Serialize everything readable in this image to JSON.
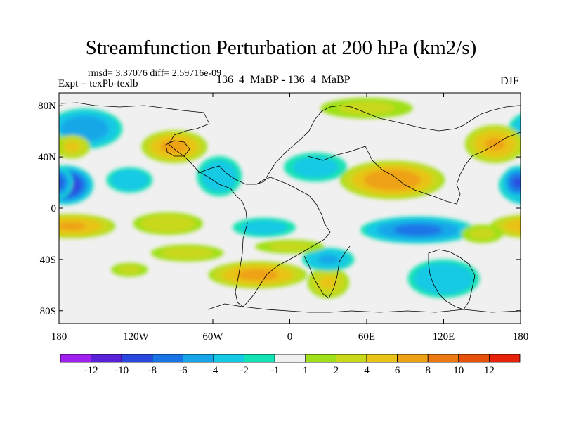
{
  "chart_data": {
    "type": "heatmap",
    "title": "Streamfunction Perturbation at 200 hPa (km2/s)",
    "stats_text": "rmsd= 3.37076 diff= 2.59716e-09",
    "left_label": "Expt = texPb-texlb",
    "center_label": "136_4_MaBP - 136_4_MaBP",
    "right_label": "DJF",
    "x_ticks": [
      "180",
      "120W",
      "60W",
      "0",
      "60E",
      "120E",
      "180"
    ],
    "x_range": [
      -180,
      180
    ],
    "y_ticks": [
      "80N",
      "40N",
      "0",
      "40S",
      "80S"
    ],
    "y_range": [
      -90,
      90
    ],
    "colorbar": {
      "labels": [
        "-12",
        "-10",
        "-8",
        "-6",
        "-4",
        "-2",
        "-1",
        "1",
        "2",
        "4",
        "6",
        "8",
        "10",
        "12"
      ],
      "colors": [
        "#a020f0",
        "#5a22d8",
        "#2a48e0",
        "#1a74e6",
        "#17a7e8",
        "#14c9e4",
        "#12e2b4",
        "#f0f0f0",
        "#9fe019",
        "#c9d81a",
        "#e8c419",
        "#eea216",
        "#ec7a12",
        "#e6520c",
        "#e6220a"
      ]
    },
    "blobs": [
      {
        "lon": -160,
        "lat": 62,
        "value": -5.5,
        "rlon": 28,
        "rlat": 15
      },
      {
        "lon": -175,
        "lat": 18,
        "value": -10.5,
        "rlon": 20,
        "rlat": 14
      },
      {
        "lon": 178,
        "lat": 20,
        "value": -8,
        "rlon": 12,
        "rlat": 12
      },
      {
        "lon": -90,
        "lat": 48,
        "value": 6.5,
        "rlon": 24,
        "rlat": 12
      },
      {
        "lon": -170,
        "lat": 48,
        "value": 4,
        "rlon": 14,
        "rlat": 9
      },
      {
        "lon": -170,
        "lat": -14,
        "value": 6,
        "rlon": 32,
        "rlat": 9
      },
      {
        "lon": -95,
        "lat": -12,
        "value": 3,
        "rlon": 28,
        "rlat": 9
      },
      {
        "lon": -125,
        "lat": 22,
        "value": -3.5,
        "rlon": 18,
        "rlat": 10
      },
      {
        "lon": -55,
        "lat": 25,
        "value": -3,
        "rlon": 18,
        "rlat": 16
      },
      {
        "lon": 20,
        "lat": 32,
        "value": -2.5,
        "rlon": 26,
        "rlat": 12
      },
      {
        "lon": 80,
        "lat": 22,
        "value": 7.5,
        "rlon": 38,
        "rlat": 14
      },
      {
        "lon": 60,
        "lat": 78,
        "value": 2,
        "rlon": 40,
        "rlat": 9
      },
      {
        "lon": 160,
        "lat": 50,
        "value": 6,
        "rlon": 22,
        "rlat": 14
      },
      {
        "lon": 100,
        "lat": -17,
        "value": -6.5,
        "rlon": 42,
        "rlat": 10
      },
      {
        "lon": -20,
        "lat": -15,
        "value": -2.5,
        "rlon": 26,
        "rlat": 8
      },
      {
        "lon": -25,
        "lat": -52,
        "value": 6.5,
        "rlon": 36,
        "rlat": 10
      },
      {
        "lon": 30,
        "lat": -58,
        "value": 4,
        "rlon": 16,
        "rlat": 12
      },
      {
        "lon": 30,
        "lat": -40,
        "value": -4,
        "rlon": 20,
        "rlat": 9
      },
      {
        "lon": 120,
        "lat": -55,
        "value": -3.5,
        "rlon": 28,
        "rlat": 15
      },
      {
        "lon": -125,
        "lat": -48,
        "value": 2,
        "rlon": 16,
        "rlat": 6
      },
      {
        "lon": 0,
        "lat": -30,
        "value": 2,
        "rlon": 30,
        "rlat": 6
      },
      {
        "lon": -80,
        "lat": -35,
        "value": 2.5,
        "rlon": 30,
        "rlat": 7
      },
      {
        "lon": 150,
        "lat": -20,
        "value": 2,
        "rlon": 18,
        "rlat": 8
      }
    ]
  }
}
